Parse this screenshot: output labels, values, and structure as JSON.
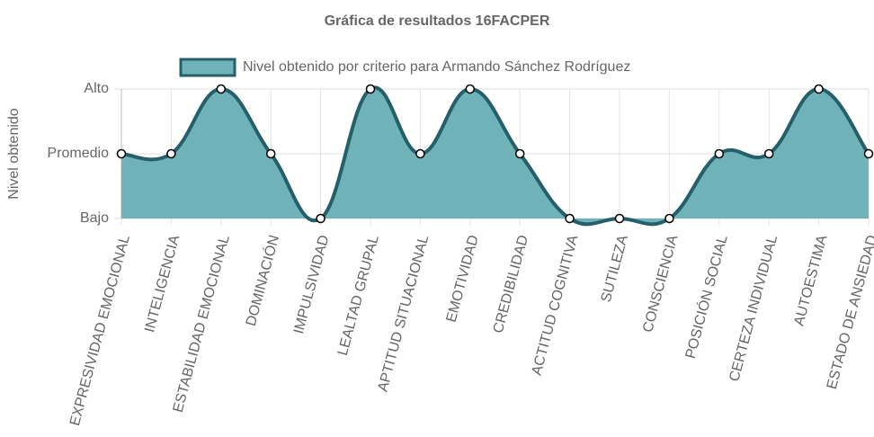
{
  "chart_data": {
    "type": "line",
    "title": "Gráfica de resultados 16FACPER",
    "y_label": "Nivel obtenido",
    "categories": [
      "EXPRESIVIDAD EMOCIONAL",
      "INTELIGENCIA",
      "ESTABILIDAD EMOCIONAL",
      "DOMINACIÓN",
      "IMPULSIVIDAD",
      "LEALTAD GRUPAL",
      "APTITUD SITUACIONAL",
      "EMOTIVIDAD",
      "CREDIBILIDAD",
      "ACTITUD COGNITIVA",
      "SUTILEZA",
      "CONSCIENCIA",
      "POSICIÓN SOCIAL",
      "CERTEZA INDIVIDUAL",
      "AUTOESTIMA",
      "ESTADO DE ANSIEDAD"
    ],
    "series": [
      {
        "name": "Nivel obtenido por criterio para Armando Sánchez Rodríguez",
        "color": "#6fb3b8",
        "border_color": "#245f6a",
        "values": [
          2,
          2,
          3,
          2,
          1,
          3,
          2,
          3,
          2,
          1,
          1,
          1,
          2,
          2,
          3,
          2
        ]
      }
    ],
    "ylim": [
      1,
      3
    ],
    "yticks": [
      {
        "value": 1,
        "label": "Bajo"
      },
      {
        "value": 2,
        "label": "Promedio"
      },
      {
        "value": 3,
        "label": "Alto"
      }
    ],
    "grid": true,
    "fill": true,
    "smooth": true
  }
}
